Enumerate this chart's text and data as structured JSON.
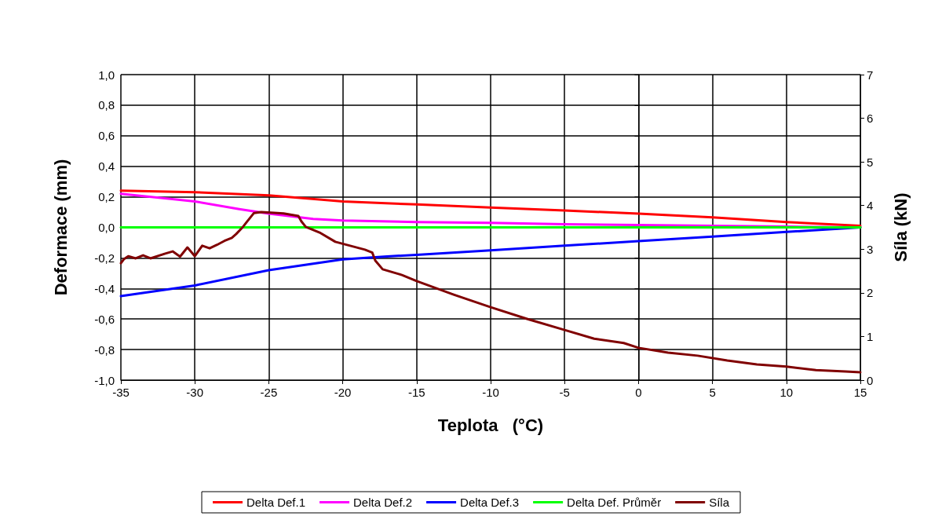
{
  "chart_data": {
    "type": "line",
    "xlabel": "Teplota   (°C)",
    "ylabel": "Deformace (mm)",
    "y2label": "Síla (kN)",
    "xlim": [
      -35,
      15
    ],
    "xticks": [
      -35,
      -30,
      -25,
      -20,
      -15,
      -10,
      -5,
      0,
      5,
      10,
      15
    ],
    "ylim": [
      -1,
      1
    ],
    "yticks": [
      {
        "value": -1,
        "label": "-1,0"
      },
      {
        "value": -0.8,
        "label": "-0,8"
      },
      {
        "value": -0.6,
        "label": "-0,6"
      },
      {
        "value": -0.4,
        "label": "-0,4"
      },
      {
        "value": -0.2,
        "label": "-0,2"
      },
      {
        "value": 0,
        "label": "0,0"
      },
      {
        "value": 0.2,
        "label": "0,2"
      },
      {
        "value": 0.4,
        "label": "0,4"
      },
      {
        "value": 0.6,
        "label": "0,6"
      },
      {
        "value": 0.8,
        "label": "0,8"
      },
      {
        "value": 1,
        "label": "1,0"
      }
    ],
    "y2lim": [
      0,
      7
    ],
    "y2ticks": [
      0,
      1,
      2,
      3,
      4,
      5,
      6,
      7
    ],
    "grid": true,
    "legend": "bottom",
    "marker": "none",
    "line_style": "solid",
    "series": [
      {
        "name": "Delta Def.1",
        "color": "#ff0000",
        "x": [
          -35,
          -30,
          -25,
          -20,
          -15,
          -10,
          -5,
          0,
          5,
          10,
          15
        ],
        "values": [
          0.24,
          0.23,
          0.21,
          0.17,
          0.15,
          0.13,
          0.11,
          0.09,
          0.065,
          0.035,
          0.01
        ]
      },
      {
        "name": "Delta Def.2",
        "color": "#ff00ff",
        "x": [
          -35,
          -30,
          -27,
          -25,
          -22,
          -20,
          -15,
          -10,
          -5,
          0,
          5,
          10,
          15
        ],
        "values": [
          0.22,
          0.17,
          0.12,
          0.09,
          0.055,
          0.045,
          0.035,
          0.03,
          0.02,
          0.015,
          0.01,
          0.005,
          0
        ]
      },
      {
        "name": "Delta Def.3",
        "color": "#0000ff",
        "x": [
          -35,
          -30,
          -25,
          -20,
          -17,
          -15,
          -10,
          -5,
          0,
          5,
          10,
          15
        ],
        "values": [
          -0.45,
          -0.38,
          -0.28,
          -0.21,
          -0.19,
          -0.18,
          -0.15,
          -0.12,
          -0.09,
          -0.06,
          -0.03,
          0
        ]
      },
      {
        "name": "Delta Def. Průměr",
        "color": "#00ff00",
        "x": [
          -35,
          -25,
          -15,
          -5,
          5,
          15
        ],
        "values": [
          0,
          0,
          0,
          0,
          0,
          0
        ]
      },
      {
        "name": "Síla",
        "color": "#800000",
        "axis": "y2",
        "x": [
          -35,
          -34.8,
          -34.5,
          -34,
          -33.5,
          -33,
          -32,
          -31.5,
          -31,
          -30.5,
          -30,
          -29.5,
          -29,
          -28.5,
          -28,
          -27.5,
          -27.2,
          -26.8,
          -26.5,
          -26,
          -25.5,
          -24,
          -23,
          -22.8,
          -22.5,
          -21.5,
          -20.5,
          -19.5,
          -18.5,
          -18,
          -17.8,
          -17.3,
          -16,
          -15,
          -12.5,
          -10,
          -7.5,
          -5,
          -3,
          -1,
          0,
          2,
          4,
          6,
          8,
          10,
          12,
          14,
          15
        ],
        "values": [
          2.68,
          2.77,
          2.84,
          2.79,
          2.86,
          2.79,
          2.9,
          2.95,
          2.83,
          3.04,
          2.84,
          3.08,
          3.02,
          3.1,
          3.19,
          3.26,
          3.35,
          3.49,
          3.62,
          3.83,
          3.85,
          3.82,
          3.76,
          3.64,
          3.51,
          3.37,
          3.17,
          3.08,
          2.99,
          2.92,
          2.74,
          2.54,
          2.41,
          2.27,
          1.96,
          1.67,
          1.4,
          1.15,
          0.95,
          0.85,
          0.74,
          0.63,
          0.56,
          0.45,
          0.36,
          0.31,
          0.23,
          0.2,
          0.18
        ]
      }
    ]
  }
}
